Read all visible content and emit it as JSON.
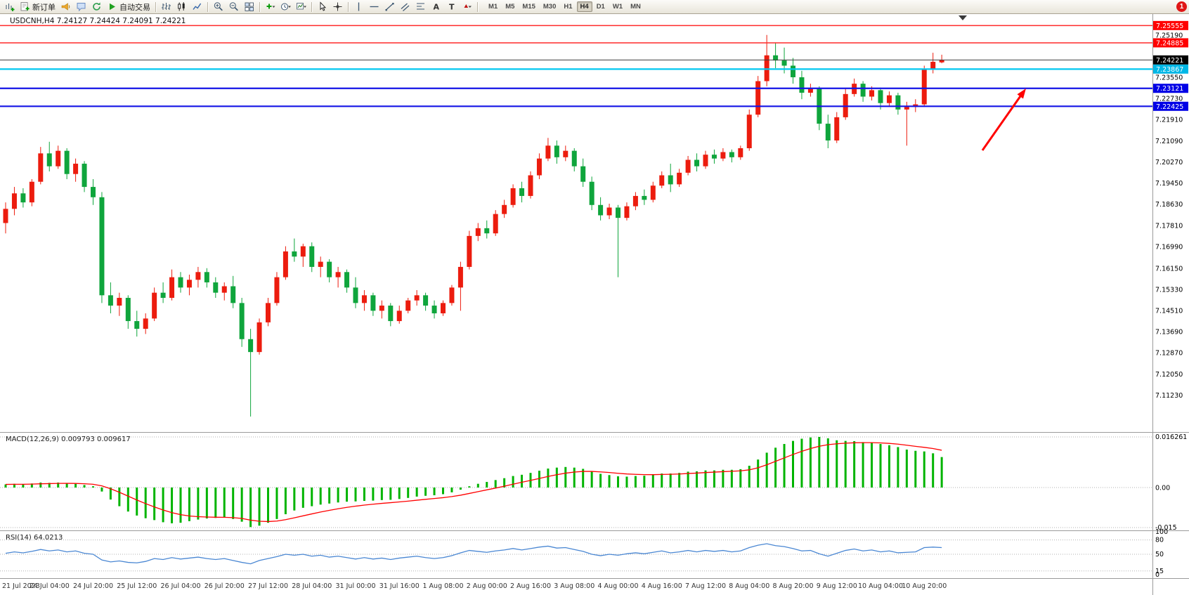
{
  "toolbar": {
    "new_order_label": "新订单",
    "autotrading_label": "自动交易",
    "timeframes": [
      "M1",
      "M5",
      "M15",
      "M30",
      "H1",
      "H4",
      "D1",
      "W1",
      "MN"
    ],
    "active_timeframe": "H4",
    "notification_badge": "1",
    "icons": [
      "new-chart",
      "new-order",
      "alerts",
      "chat",
      "community-refresh",
      "autotrading-play",
      "bar-chart",
      "candle-chart",
      "line-chart",
      "zoom-in",
      "zoom-out",
      "tile-windows",
      "indicators-add",
      "periods-clock",
      "templates",
      "cursor",
      "crosshair",
      "vertical-line",
      "horizontal-line",
      "trendline",
      "channel",
      "fibonacci",
      "text",
      "text-label",
      "arrow-shapes",
      "notification"
    ]
  },
  "chart": {
    "title": "USDCNH,H4 7.24127 7.24424 7.24091 7.24221",
    "symbol": "USDCNH",
    "period": "H4",
    "ohlc": {
      "open": "7.24127",
      "high": "7.24424",
      "low": "7.24091",
      "close": "7.24221"
    },
    "colors": {
      "up": "#ec1c0e",
      "down": "#0fa53c",
      "macd_hist": "#00b400",
      "macd_signal": "#ff0000",
      "rsi_line": "#4a87d3",
      "background": "#ffffff",
      "separator": "#9a9a9a",
      "axis_text": "#000000",
      "time_text": "#333333",
      "arrow": "#ff0000"
    },
    "levels": [
      {
        "price": 7.25555,
        "text": "7.25555",
        "line": "#ff2a2a",
        "width": 1.5,
        "tag": "#ff0000"
      },
      {
        "price": 7.24885,
        "text": "7.24885",
        "line": "#ff2a2a",
        "width": 1.5,
        "tag": "#ff0000"
      },
      {
        "price": 7.24221,
        "text": "7.24221",
        "line": "#3c3c3c",
        "width": 1,
        "tag": "#000000"
      },
      {
        "price": 7.23867,
        "text": "7.23867",
        "line": "#00c8f0",
        "width": 2.2,
        "tag": "#00b7e6"
      },
      {
        "price": 7.23121,
        "text": "7.23121",
        "line": "#1414e6",
        "width": 2.2,
        "tag": "#0000e6"
      },
      {
        "price": 7.22425,
        "text": "7.22425",
        "line": "#1414e6",
        "width": 2.2,
        "tag": "#0000e6"
      }
    ],
    "price_axis": {
      "grid_labels": [
        "7.25190",
        "7.23550",
        "7.22730",
        "7.21910",
        "7.21090",
        "7.20270",
        "7.19450",
        "7.18630",
        "7.17810",
        "7.16990",
        "7.16150",
        "7.15330",
        "7.14510",
        "7.13690",
        "7.12870",
        "7.12050",
        "7.11230"
      ]
    },
    "time_labels": [
      "21 Jul 2023",
      "24 Jul 04:00",
      "24 Jul 20:00",
      "25 Jul 12:00",
      "26 Jul 04:00",
      "26 Jul 20:00",
      "27 Jul 12:00",
      "28 Jul 04:00",
      "31 Jul 00:00",
      "31 Jul 16:00",
      "1 Aug 08:00",
      "2 Aug 00:00",
      "2 Aug 16:00",
      "3 Aug 08:00",
      "4 Aug 00:00",
      "4 Aug 16:00",
      "7 Aug 12:00",
      "8 Aug 04:00",
      "8 Aug 20:00",
      "9 Aug 12:00",
      "10 Aug 04:00",
      "10 Aug 20:00"
    ]
  },
  "chart_data": {
    "type": "candlestick",
    "symbol": "USDCNH",
    "timeframe": "H4",
    "title": "USDCNH,H4",
    "ylim": [
      7.098,
      7.26
    ],
    "candles": [
      [
        7.179,
        7.187,
        7.175,
        7.1845
      ],
      [
        7.1845,
        7.193,
        7.182,
        7.1905
      ],
      [
        7.1905,
        7.1925,
        7.185,
        7.187
      ],
      [
        7.187,
        7.196,
        7.1855,
        7.195
      ],
      [
        7.195,
        7.2085,
        7.194,
        7.206
      ],
      [
        7.206,
        7.2105,
        7.199,
        7.201
      ],
      [
        7.201,
        7.209,
        7.2,
        7.207
      ],
      [
        7.207,
        7.208,
        7.196,
        7.198
      ],
      [
        7.198,
        7.204,
        7.195,
        7.202
      ],
      [
        7.202,
        7.203,
        7.191,
        7.193
      ],
      [
        7.193,
        7.196,
        7.186,
        7.189
      ],
      [
        7.189,
        7.191,
        7.148,
        7.151
      ],
      [
        7.151,
        7.156,
        7.144,
        7.147
      ],
      [
        7.147,
        7.152,
        7.143,
        7.15
      ],
      [
        7.15,
        7.151,
        7.138,
        7.141
      ],
      [
        7.141,
        7.145,
        7.135,
        7.138
      ],
      [
        7.138,
        7.144,
        7.136,
        7.142
      ],
      [
        7.142,
        7.154,
        7.141,
        7.152
      ],
      [
        7.152,
        7.156,
        7.148,
        7.15
      ],
      [
        7.15,
        7.161,
        7.149,
        7.158
      ],
      [
        7.158,
        7.16,
        7.152,
        7.154
      ],
      [
        7.154,
        7.159,
        7.151,
        7.157
      ],
      [
        7.157,
        7.162,
        7.154,
        7.16
      ],
      [
        7.16,
        7.1615,
        7.154,
        7.156
      ],
      [
        7.156,
        7.158,
        7.15,
        7.152
      ],
      [
        7.152,
        7.156,
        7.149,
        7.1545
      ],
      [
        7.1545,
        7.1585,
        7.146,
        7.148
      ],
      [
        7.148,
        7.15,
        7.131,
        7.134
      ],
      [
        7.134,
        7.138,
        7.104,
        7.129
      ],
      [
        7.129,
        7.142,
        7.128,
        7.1405
      ],
      [
        7.1405,
        7.15,
        7.139,
        7.148
      ],
      [
        7.148,
        7.16,
        7.147,
        7.158
      ],
      [
        7.158,
        7.17,
        7.157,
        7.168
      ],
      [
        7.168,
        7.173,
        7.164,
        7.166
      ],
      [
        7.166,
        7.171,
        7.162,
        7.17
      ],
      [
        7.17,
        7.1715,
        7.16,
        7.162
      ],
      [
        7.162,
        7.166,
        7.158,
        7.164
      ],
      [
        7.164,
        7.165,
        7.156,
        7.158
      ],
      [
        7.158,
        7.162,
        7.154,
        7.16
      ],
      [
        7.16,
        7.161,
        7.152,
        7.154
      ],
      [
        7.154,
        7.158,
        7.146,
        7.148
      ],
      [
        7.148,
        7.153,
        7.145,
        7.151
      ],
      [
        7.151,
        7.152,
        7.143,
        7.145
      ],
      [
        7.145,
        7.149,
        7.142,
        7.147
      ],
      [
        7.147,
        7.148,
        7.139,
        7.141
      ],
      [
        7.141,
        7.147,
        7.14,
        7.145
      ],
      [
        7.145,
        7.15,
        7.144,
        7.149
      ],
      [
        7.149,
        7.153,
        7.147,
        7.151
      ],
      [
        7.151,
        7.152,
        7.145,
        7.147
      ],
      [
        7.147,
        7.149,
        7.142,
        7.144
      ],
      [
        7.144,
        7.149,
        7.143,
        7.148
      ],
      [
        7.148,
        7.155,
        7.147,
        7.154
      ],
      [
        7.154,
        7.164,
        7.145,
        7.162
      ],
      [
        7.162,
        7.176,
        7.161,
        7.174
      ],
      [
        7.174,
        7.179,
        7.172,
        7.177
      ],
      [
        7.177,
        7.18,
        7.173,
        7.175
      ],
      [
        7.175,
        7.184,
        7.174,
        7.1825
      ],
      [
        7.1825,
        7.188,
        7.181,
        7.186
      ],
      [
        7.186,
        7.194,
        7.185,
        7.1925
      ],
      [
        7.1925,
        7.195,
        7.187,
        7.1895
      ],
      [
        7.1895,
        7.199,
        7.1885,
        7.1975
      ],
      [
        7.1975,
        7.206,
        7.196,
        7.204
      ],
      [
        7.204,
        7.212,
        7.203,
        7.209
      ],
      [
        7.209,
        7.211,
        7.202,
        7.2045
      ],
      [
        7.2045,
        7.209,
        7.203,
        7.207
      ],
      [
        7.207,
        7.208,
        7.199,
        7.201
      ],
      [
        7.201,
        7.204,
        7.193,
        7.195
      ],
      [
        7.195,
        7.197,
        7.184,
        7.186
      ],
      [
        7.186,
        7.189,
        7.18,
        7.182
      ],
      [
        7.182,
        7.1865,
        7.1805,
        7.185
      ],
      [
        7.185,
        7.186,
        7.158,
        7.181
      ],
      [
        7.181,
        7.187,
        7.18,
        7.1855
      ],
      [
        7.1855,
        7.191,
        7.184,
        7.1895
      ],
      [
        7.1895,
        7.192,
        7.186,
        7.188
      ],
      [
        7.188,
        7.195,
        7.187,
        7.1935
      ],
      [
        7.1935,
        7.199,
        7.1925,
        7.1975
      ],
      [
        7.1975,
        7.202,
        7.191,
        7.194
      ],
      [
        7.194,
        7.2,
        7.193,
        7.1985
      ],
      [
        7.1985,
        7.205,
        7.1975,
        7.2035
      ],
      [
        7.2035,
        7.206,
        7.199,
        7.201
      ],
      [
        7.201,
        7.207,
        7.2,
        7.2055
      ],
      [
        7.2055,
        7.2075,
        7.202,
        7.204
      ],
      [
        7.204,
        7.208,
        7.203,
        7.2065
      ],
      [
        7.2065,
        7.2075,
        7.2025,
        7.2045
      ],
      [
        7.2045,
        7.209,
        7.2035,
        7.208
      ],
      [
        7.208,
        7.223,
        7.207,
        7.221
      ],
      [
        7.221,
        7.236,
        7.22,
        7.234
      ],
      [
        7.234,
        7.2519,
        7.232,
        7.244
      ],
      [
        7.244,
        7.249,
        7.239,
        7.242
      ],
      [
        7.242,
        7.247,
        7.237,
        7.24
      ],
      [
        7.24,
        7.243,
        7.233,
        7.2355
      ],
      [
        7.2355,
        7.238,
        7.227,
        7.2295
      ],
      [
        7.2295,
        7.233,
        7.228,
        7.231
      ],
      [
        7.231,
        7.232,
        7.215,
        7.2175
      ],
      [
        7.2175,
        7.221,
        7.208,
        7.211
      ],
      [
        7.211,
        7.222,
        7.21,
        7.22
      ],
      [
        7.22,
        7.231,
        7.219,
        7.229
      ],
      [
        7.229,
        7.235,
        7.228,
        7.233
      ],
      [
        7.233,
        7.234,
        7.226,
        7.228
      ],
      [
        7.228,
        7.232,
        7.2265,
        7.2305
      ],
      [
        7.2305,
        7.2315,
        7.223,
        7.2255
      ],
      [
        7.2255,
        7.23,
        7.224,
        7.2285
      ],
      [
        7.2285,
        7.2295,
        7.221,
        7.223
      ],
      [
        7.223,
        7.226,
        7.209,
        7.224
      ],
      [
        7.224,
        7.227,
        7.222,
        7.225
      ],
      [
        7.225,
        7.24,
        7.224,
        7.2385
      ],
      [
        7.2385,
        7.245,
        7.237,
        7.2415
      ],
      [
        7.24127,
        7.24424,
        7.24091,
        7.24221
      ]
    ],
    "macd": {
      "label": "MACD(12,26,9)",
      "value_main": "0.009793",
      "value_signal": "0.009617",
      "scale_labels": [
        "0.016261",
        "0.00",
        "-0.015"
      ],
      "scale_values": [
        0.016261,
        0,
        -0.015
      ],
      "values": [
        0.001,
        0.0012,
        0.0011,
        0.0013,
        0.0016,
        0.0015,
        0.0016,
        0.0014,
        0.0012,
        0.0008,
        0.0004,
        -0.0015,
        -0.0045,
        -0.007,
        -0.009,
        -0.0105,
        -0.0115,
        -0.0122,
        -0.013,
        -0.0134,
        -0.0132,
        -0.0126,
        -0.012,
        -0.0116,
        -0.0114,
        -0.0112,
        -0.0118,
        -0.0128,
        -0.0148,
        -0.0143,
        -0.0132,
        -0.0118,
        -0.01,
        -0.0086,
        -0.0076,
        -0.007,
        -0.0064,
        -0.006,
        -0.0056,
        -0.0053,
        -0.0052,
        -0.005,
        -0.0049,
        -0.0047,
        -0.0046,
        -0.0043,
        -0.0039,
        -0.0034,
        -0.0031,
        -0.0029,
        -0.0025,
        -0.0018,
        -0.0008,
        0.0004,
        0.0012,
        0.0018,
        0.0024,
        0.003,
        0.0037,
        0.0041,
        0.0047,
        0.0054,
        0.0061,
        0.0064,
        0.0066,
        0.0064,
        0.006,
        0.0052,
        0.0044,
        0.004,
        0.0036,
        0.0035,
        0.0037,
        0.0038,
        0.0041,
        0.0045,
        0.0045,
        0.0047,
        0.0051,
        0.0052,
        0.0055,
        0.0055,
        0.0057,
        0.0057,
        0.0059,
        0.007,
        0.009,
        0.0112,
        0.0128,
        0.014,
        0.015,
        0.0157,
        0.0161,
        0.016261,
        0.0158,
        0.0152,
        0.015,
        0.0149,
        0.0146,
        0.0144,
        0.014,
        0.0136,
        0.013,
        0.0122,
        0.0118,
        0.0116,
        0.011,
        0.009793
      ]
    },
    "rsi": {
      "label": "RSI(14)",
      "value": "64.0213",
      "scale_labels": [
        "100",
        "80",
        "50",
        "15",
        "0"
      ],
      "levels": [
        80,
        50,
        15
      ],
      "values": [
        52,
        55,
        53,
        56,
        60,
        57,
        59,
        55,
        57,
        52,
        50,
        38,
        34,
        36,
        33,
        32,
        35,
        41,
        39,
        43,
        40,
        42,
        44,
        41,
        39,
        41,
        37,
        33,
        30,
        37,
        41,
        45,
        50,
        48,
        50,
        46,
        48,
        44,
        46,
        43,
        40,
        43,
        40,
        42,
        39,
        42,
        44,
        46,
        43,
        41,
        43,
        47,
        53,
        58,
        56,
        54,
        57,
        59,
        62,
        59,
        62,
        65,
        67,
        63,
        64,
        60,
        56,
        50,
        47,
        50,
        48,
        51,
        53,
        51,
        54,
        57,
        53,
        55,
        58,
        55,
        58,
        56,
        58,
        55,
        57,
        64,
        69,
        72,
        68,
        66,
        62,
        57,
        58,
        51,
        46,
        52,
        58,
        61,
        57,
        59,
        55,
        57,
        53,
        54,
        55,
        64,
        65,
        64.02
      ]
    }
  }
}
